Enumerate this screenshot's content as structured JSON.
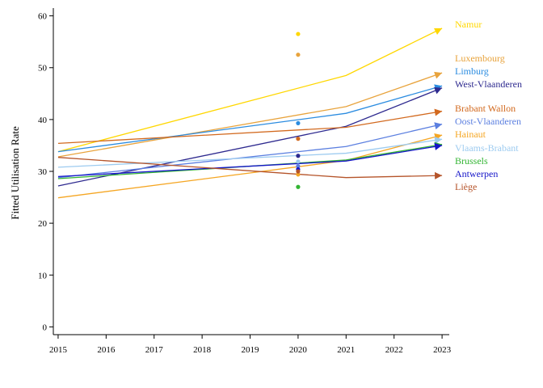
{
  "chart_data": {
    "type": "line",
    "ylabel": "Fitted Utilisation Rate",
    "xlabel": "",
    "x": [
      2015,
      2016,
      2017,
      2018,
      2019,
      2020,
      2021,
      2022,
      2023
    ],
    "xticks": [
      "2015",
      "2016",
      "2017",
      "2018",
      "2019",
      "2020",
      "2021",
      "2022",
      "2023"
    ],
    "yticks": [
      "0",
      "10",
      "20",
      "30",
      "40",
      "50",
      "60"
    ],
    "xlim": [
      2014.9,
      2023.15
    ],
    "ylim": [
      -1.5,
      61.5
    ],
    "grid": false,
    "legend_placement": "right, labels at line ends",
    "series": [
      {
        "name": "Namur",
        "color": "#FFD700",
        "line": [
          [
            2015,
            33.8
          ],
          [
            2021,
            48.5
          ],
          [
            2023,
            57.6
          ]
        ],
        "point2020": 56.5
      },
      {
        "name": "Luxembourg",
        "color": "#E8A33C",
        "line": [
          [
            2015,
            32.8
          ],
          [
            2021,
            42.5
          ],
          [
            2023,
            49.0
          ]
        ],
        "point2020": 52.5
      },
      {
        "name": "Limburg",
        "color": "#2B8CE0",
        "line": [
          [
            2015,
            33.8
          ],
          [
            2021,
            41.2
          ],
          [
            2023,
            46.5
          ]
        ],
        "point2020": 39.3
      },
      {
        "name": "West-Vlaanderen",
        "color": "#2E2A8F",
        "line": [
          [
            2015,
            27.2
          ],
          [
            2021,
            38.7
          ],
          [
            2023,
            46.1
          ]
        ],
        "point2020": 33.0
      },
      {
        "name": "Brabant Wallon",
        "color": "#D2691E",
        "line": [
          [
            2015,
            35.4
          ],
          [
            2021,
            38.5
          ],
          [
            2023,
            41.6
          ]
        ],
        "point2020": 36.3
      },
      {
        "name": "Oost-Vlaanderen",
        "color": "#5B7FE0",
        "line": [
          [
            2015,
            28.8
          ],
          [
            2021,
            34.8
          ],
          [
            2023,
            39.1
          ]
        ],
        "point2020": 31.0
      },
      {
        "name": "Hainaut",
        "color": "#F5A623",
        "line": [
          [
            2015,
            24.9
          ],
          [
            2021,
            32.1
          ],
          [
            2023,
            37.0
          ]
        ],
        "point2020": 29.4
      },
      {
        "name": "Vlaams-Brabant",
        "color": "#9DCBF0",
        "line": [
          [
            2015,
            30.8
          ],
          [
            2021,
            33.5
          ],
          [
            2023,
            36.2
          ]
        ],
        "point2020": 31.9
      },
      {
        "name": "Brussels",
        "color": "#33B533",
        "line": [
          [
            2015,
            28.6
          ],
          [
            2021,
            32.2
          ],
          [
            2023,
            35.2
          ]
        ],
        "point2020": 27.0
      },
      {
        "name": "Antwerpen",
        "color": "#1515C8",
        "line": [
          [
            2015,
            29.0
          ],
          [
            2021,
            32.0
          ],
          [
            2023,
            35.0
          ]
        ],
        "point2020": 30.4
      },
      {
        "name": "Liège",
        "color": "#B5542A",
        "line": [
          [
            2015,
            32.7
          ],
          [
            2021,
            28.8
          ],
          [
            2023,
            29.2
          ]
        ],
        "point2020": 30.0
      }
    ]
  }
}
